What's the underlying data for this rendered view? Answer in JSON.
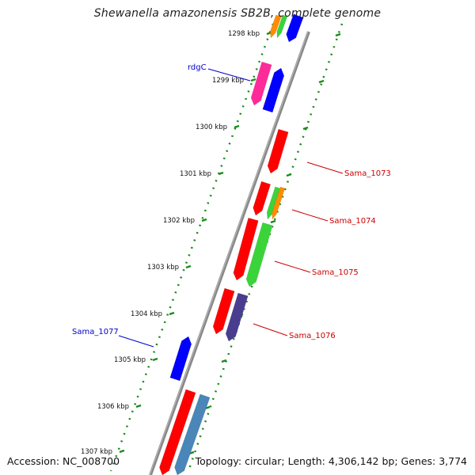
{
  "title": "Shewanella amazonensis SB2B, complete genome",
  "accession": "Accession: NC_008700",
  "topology": "Topology: circular; Length: 4,306,142 bp; Genes: 3,774",
  "ticks": [
    {
      "label": "1298 kbp"
    },
    {
      "label": "1299 kbp"
    },
    {
      "label": "1300 kbp"
    },
    {
      "label": "1301 kbp"
    },
    {
      "label": "1302 kbp"
    },
    {
      "label": "1303 kbp"
    },
    {
      "label": "1304 kbp"
    },
    {
      "label": "1305 kbp"
    },
    {
      "label": "1306 kbp"
    },
    {
      "label": "1307 kbp"
    }
  ],
  "gene_labels": [
    {
      "text": "rdgC",
      "color": "#0000cc"
    },
    {
      "text": "Sama_1073",
      "color": "#cc0000"
    },
    {
      "text": "Sama_1074",
      "color": "#cc0000"
    },
    {
      "text": "Sama_1075",
      "color": "#cc0000"
    },
    {
      "text": "Sama_1076",
      "color": "#cc0000"
    },
    {
      "text": "Sama_1077",
      "color": "#0000cc"
    }
  ],
  "colors": {
    "red": "#ff0000",
    "green": "#3ad43a",
    "blue": "#0000ff",
    "magenta": "#ff2a9a",
    "orange": "#ff8c00",
    "purple": "#4a3d8f",
    "steel": "#4a86b8",
    "backbone": "#888888",
    "tick_green": "#1a8a1a"
  }
}
